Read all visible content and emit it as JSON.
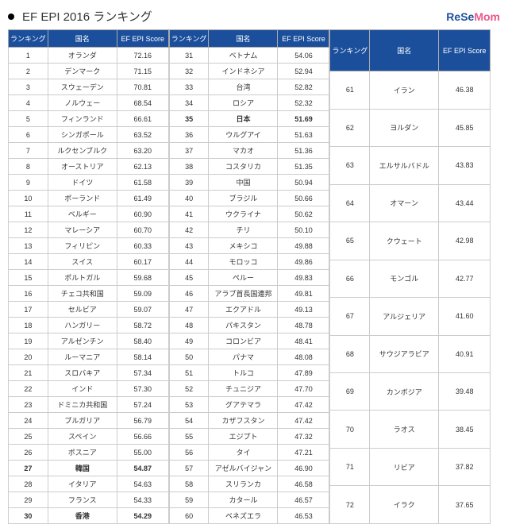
{
  "title": "EF EPI 2016 ランキング",
  "logo_left": "ReSe",
  "logo_right": "Mom",
  "headers": {
    "rank": "ランキング",
    "country": "国名",
    "score": "EF EPI Score"
  },
  "colors": {
    "header_bg": "#1b4f9c",
    "header_fg": "#ffffff",
    "border": "#cccccc"
  },
  "rows": [
    [
      1,
      "オランダ",
      "72.16"
    ],
    [
      2,
      "デンマーク",
      "71.15"
    ],
    [
      3,
      "スウェーデン",
      "70.81"
    ],
    [
      4,
      "ノルウェー",
      "68.54"
    ],
    [
      5,
      "フィンランド",
      "66.61"
    ],
    [
      6,
      "シンガポール",
      "63.52"
    ],
    [
      7,
      "ルクセンブルク",
      "63.20"
    ],
    [
      8,
      "オーストリア",
      "62.13"
    ],
    [
      9,
      "ドイツ",
      "61.58"
    ],
    [
      10,
      "ポーランド",
      "61.49"
    ],
    [
      11,
      "ベルギー",
      "60.90"
    ],
    [
      12,
      "マレーシア",
      "60.70"
    ],
    [
      13,
      "フィリピン",
      "60.33"
    ],
    [
      14,
      "スイス",
      "60.17"
    ],
    [
      15,
      "ポルトガル",
      "59.68"
    ],
    [
      16,
      "チェコ共和国",
      "59.09"
    ],
    [
      17,
      "セルビア",
      "59.07"
    ],
    [
      18,
      "ハンガリー",
      "58.72"
    ],
    [
      19,
      "アルゼンチン",
      "58.40"
    ],
    [
      20,
      "ルーマニア",
      "58.14"
    ],
    [
      21,
      "スロバキア",
      "57.34"
    ],
    [
      22,
      "インド",
      "57.30"
    ],
    [
      23,
      "ドミニカ共和国",
      "57.24"
    ],
    [
      24,
      "ブルガリア",
      "56.79"
    ],
    [
      25,
      "スペイン",
      "56.66"
    ],
    [
      26,
      "ボスニア",
      "55.00"
    ],
    [
      27,
      "韓国",
      "54.87"
    ],
    [
      28,
      "イタリア",
      "54.63"
    ],
    [
      29,
      "フランス",
      "54.33"
    ],
    [
      30,
      "香港",
      "54.29"
    ],
    [
      31,
      "ベトナム",
      "54.06"
    ],
    [
      32,
      "インドネシア",
      "52.94"
    ],
    [
      33,
      "台湾",
      "52.82"
    ],
    [
      34,
      "ロシア",
      "52.32"
    ],
    [
      35,
      "日本",
      "51.69"
    ],
    [
      36,
      "ウルグアイ",
      "51.63"
    ],
    [
      37,
      "マカオ",
      "51.36"
    ],
    [
      38,
      "コスタリカ",
      "51.35"
    ],
    [
      39,
      "中国",
      "50.94"
    ],
    [
      40,
      "ブラジル",
      "50.66"
    ],
    [
      41,
      "ウクライナ",
      "50.62"
    ],
    [
      42,
      "チリ",
      "50.10"
    ],
    [
      43,
      "メキシコ",
      "49.88"
    ],
    [
      44,
      "モロッコ",
      "49.86"
    ],
    [
      45,
      "ペルー",
      "49.83"
    ],
    [
      46,
      "アラブ首長国連邦",
      "49.81"
    ],
    [
      47,
      "エクアドル",
      "49.13"
    ],
    [
      48,
      "パキスタン",
      "48.78"
    ],
    [
      49,
      "コロンビア",
      "48.41"
    ],
    [
      50,
      "パナマ",
      "48.08"
    ],
    [
      51,
      "トルコ",
      "47.89"
    ],
    [
      52,
      "チュニジア",
      "47.70"
    ],
    [
      53,
      "グアテマラ",
      "47.42"
    ],
    [
      54,
      "カザフスタン",
      "47.42"
    ],
    [
      55,
      "エジプト",
      "47.32"
    ],
    [
      56,
      "タイ",
      "47.21"
    ],
    [
      57,
      "アゼルバイジャン",
      "46.90"
    ],
    [
      58,
      "スリランカ",
      "46.58"
    ],
    [
      59,
      "カタール",
      "46.57"
    ],
    [
      60,
      "ベネズエラ",
      "46.53"
    ],
    [
      61,
      "イラン",
      "46.38"
    ],
    [
      62,
      "ヨルダン",
      "45.85"
    ],
    [
      63,
      "エルサルバドル",
      "43.83"
    ],
    [
      64,
      "オマーン",
      "43.44"
    ],
    [
      65,
      "クウェート",
      "42.98"
    ],
    [
      66,
      "モンゴル",
      "42.77"
    ],
    [
      67,
      "アルジェリア",
      "41.60"
    ],
    [
      68,
      "サウジアラビア",
      "40.91"
    ],
    [
      69,
      "カンボジア",
      "39.48"
    ],
    [
      70,
      "ラオス",
      "38.45"
    ],
    [
      71,
      "リビア",
      "37.82"
    ],
    [
      72,
      "イラク",
      "37.65"
    ]
  ],
  "bold_ranks": [
    27,
    30,
    35
  ]
}
